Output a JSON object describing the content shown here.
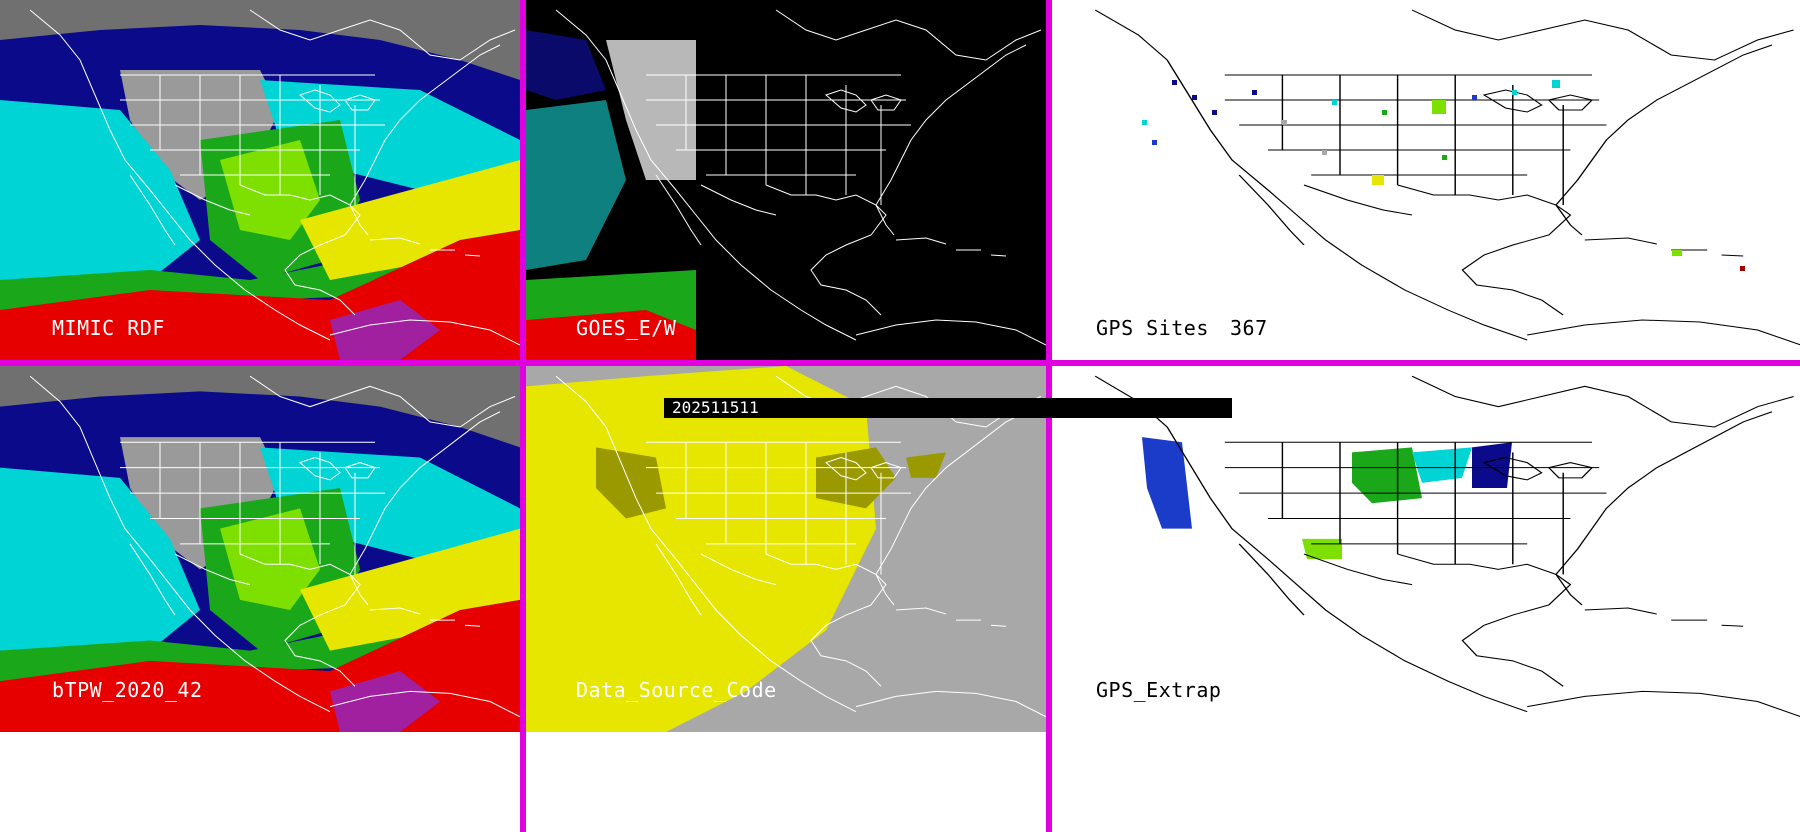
{
  "panels": {
    "mimic": {
      "label": "MIMIC RDF"
    },
    "goes": {
      "label": "GOES_E/W",
      "timestamp": "202511511"
    },
    "gps_sites": {
      "label": "GPS Sites",
      "count": "367"
    },
    "btpw": {
      "label": "bTPW_2020_42"
    },
    "data_source": {
      "label": "Data_Source_Code"
    },
    "gps_extrap": {
      "label": "GPS_Extrap"
    }
  },
  "colors": {
    "divider": "#e000e0",
    "map_lines_on_dark": "#ffffff",
    "map_lines_on_light": "#000000",
    "tpw_scale": [
      "#0a0a8a",
      "#1a3cc8",
      "#00e6e6",
      "#1aa81a",
      "#7ee000",
      "#e6e600",
      "#e60000",
      "#a020a0"
    ],
    "data_source_gray": "#a8a8a8",
    "data_source_yellow": "#e6e600",
    "data_source_olive": "#9a9a00"
  },
  "icons": [
    "north-america-outline-map"
  ]
}
